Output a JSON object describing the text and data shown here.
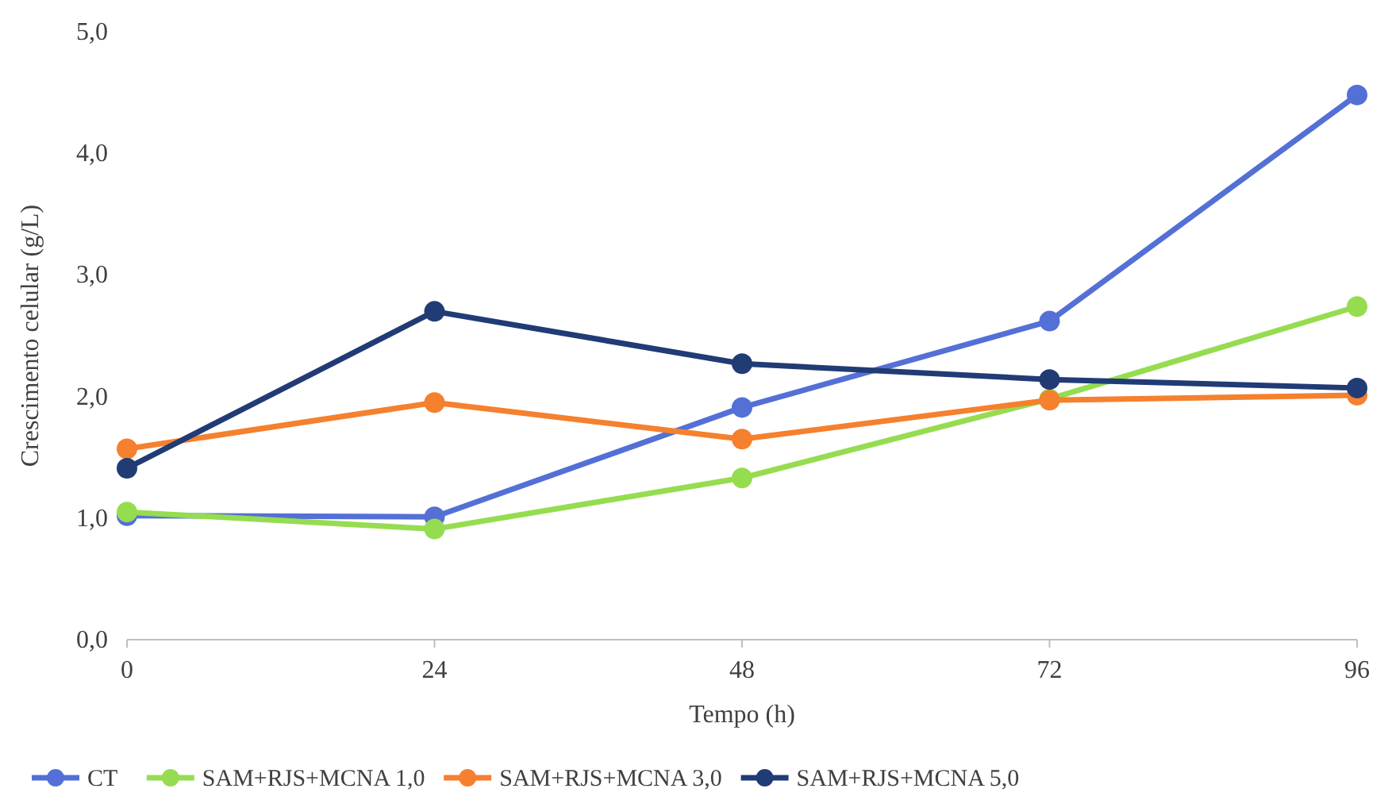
{
  "chart_data": {
    "type": "line",
    "xlabel": "Tempo (h)",
    "ylabel": "Crescimento celular (g/L)",
    "x": [
      0,
      24,
      48,
      72,
      96
    ],
    "xlim": [
      0,
      96
    ],
    "xticks": [
      0,
      24,
      48,
      72,
      96
    ],
    "ylim": [
      0,
      5
    ],
    "yticks": [
      {
        "value": 0,
        "label": "0,0"
      },
      {
        "value": 1,
        "label": "1,0"
      },
      {
        "value": 2,
        "label": "2,0"
      },
      {
        "value": 3,
        "label": "3,0"
      },
      {
        "value": 4,
        "label": "4,0"
      },
      {
        "value": 5,
        "label": "5,0"
      }
    ],
    "series": [
      {
        "name": "CT",
        "color": "#5470d6",
        "values": [
          1.02,
          1.01,
          1.91,
          2.62,
          4.48
        ]
      },
      {
        "name": "SAM+RJS+MCNA 1,0",
        "color": "#96dc50",
        "values": [
          1.05,
          0.91,
          1.33,
          1.98,
          2.74
        ]
      },
      {
        "name": "SAM+RJS+MCNA 3,0",
        "color": "#f5802e",
        "values": [
          1.57,
          1.95,
          1.65,
          1.97,
          2.01
        ]
      },
      {
        "name": "SAM+RJS+MCNA 5,0",
        "color": "#213b75",
        "values": [
          1.41,
          2.7,
          2.27,
          2.14,
          2.07
        ]
      }
    ],
    "grid": false,
    "legend": "bottom",
    "marker": "circle",
    "line_style": "solid"
  }
}
